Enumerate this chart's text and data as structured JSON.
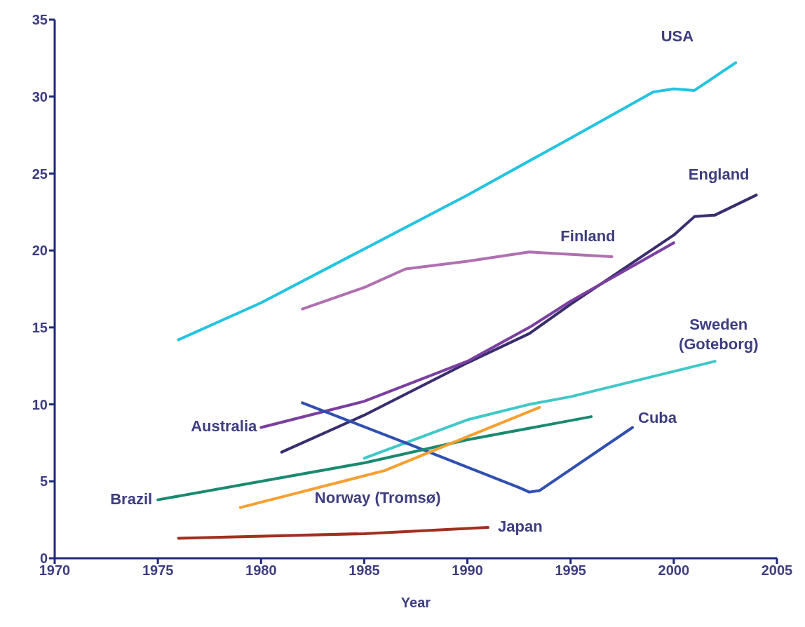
{
  "chart_data": {
    "type": "line",
    "xlabel": "Year",
    "xlim": [
      1970,
      2005
    ],
    "xticks": [
      1970,
      1975,
      1980,
      1985,
      1990,
      1995,
      2000,
      2005
    ],
    "ylim": [
      0,
      35
    ],
    "yticks": [
      0,
      5,
      10,
      15,
      20,
      25,
      30,
      35
    ],
    "grid": false,
    "legend": false,
    "marker": "none",
    "line_style": "solid",
    "series": [
      {
        "name": "USA",
        "color": "#22c4e0",
        "x": [
          1976,
          1980,
          1990,
          1995,
          1999,
          2000,
          2001,
          2003
        ],
        "values": [
          14.2,
          16.6,
          23.6,
          27.3,
          30.3,
          30.5,
          30.4,
          32.2
        ]
      },
      {
        "name": "England",
        "color": "#3a2d6e",
        "x": [
          1981,
          1985,
          1990,
          1993,
          1995,
          1998,
          2000,
          2001,
          2002,
          2004
        ],
        "values": [
          6.9,
          9.3,
          12.7,
          14.6,
          16.5,
          19.2,
          21.0,
          22.2,
          22.3,
          23.6
        ]
      },
      {
        "name": "Finland",
        "color": "#b070b0",
        "x": [
          1982,
          1985,
          1987,
          1990,
          1993,
          1997
        ],
        "values": [
          16.2,
          17.6,
          18.8,
          19.3,
          19.9,
          19.6
        ]
      },
      {
        "name": "Australia",
        "color": "#7a3fa0",
        "x": [
          1980,
          1985,
          1990,
          1993,
          1995,
          2000
        ],
        "values": [
          8.5,
          10.2,
          12.8,
          15.0,
          16.7,
          20.5
        ]
      },
      {
        "name": "Sweden (Goteborg)",
        "color": "#40c8c8",
        "x": [
          1985,
          1990,
          1993,
          1995,
          2002
        ],
        "values": [
          6.5,
          9.0,
          10.0,
          10.5,
          12.8
        ]
      },
      {
        "name": "Cuba",
        "color": "#3050b0",
        "x": [
          1982,
          1987,
          1992.5,
          1993,
          1993.5,
          1998
        ],
        "values": [
          10.1,
          7.5,
          4.6,
          4.3,
          4.4,
          8.5
        ]
      },
      {
        "name": "Brazil",
        "color": "#1a8a70",
        "x": [
          1975,
          1985,
          1990,
          1996
        ],
        "values": [
          3.8,
          6.2,
          7.7,
          9.2
        ]
      },
      {
        "name": "Norway (Tromsø)",
        "color": "#f5a030",
        "x": [
          1979,
          1986,
          1990,
          1993.5
        ],
        "values": [
          3.3,
          5.7,
          7.9,
          9.8
        ]
      },
      {
        "name": "Japan",
        "color": "#a03020",
        "x": [
          1976,
          1985,
          1991
        ],
        "values": [
          1.3,
          1.6,
          2.0
        ]
      }
    ]
  }
}
